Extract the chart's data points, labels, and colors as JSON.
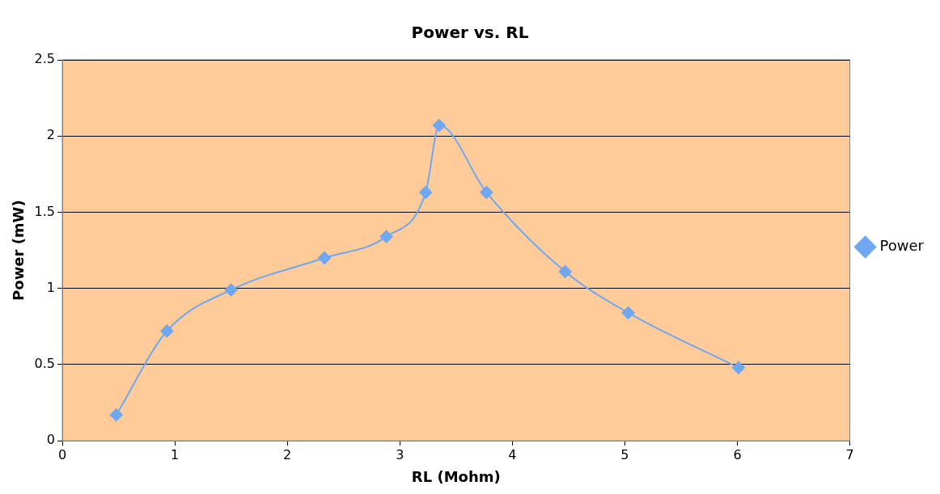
{
  "chart_data": {
    "type": "line",
    "title": "Power vs. RL",
    "xlabel": "RL (Mohm)",
    "ylabel": "Power (mW)",
    "x": [
      0.48,
      0.93,
      1.5,
      2.33,
      2.88,
      3.23,
      3.35,
      3.77,
      4.47,
      5.03,
      6.01
    ],
    "series": [
      {
        "name": "Power",
        "color": "#6fa8f0",
        "values": [
          0.17,
          0.72,
          0.99,
          1.2,
          1.34,
          1.63,
          2.07,
          1.63,
          1.11,
          0.84,
          0.48
        ]
      }
    ],
    "xlim": [
      0,
      7
    ],
    "xticks": [
      0,
      1,
      2,
      3,
      4,
      5,
      6,
      7
    ],
    "ylim": [
      0,
      2.5
    ],
    "yticks": [
      0,
      0.5,
      1,
      1.5,
      2,
      2.5
    ],
    "grid": "y",
    "legend": "right",
    "marker": "diamond",
    "line_style": "solid"
  }
}
